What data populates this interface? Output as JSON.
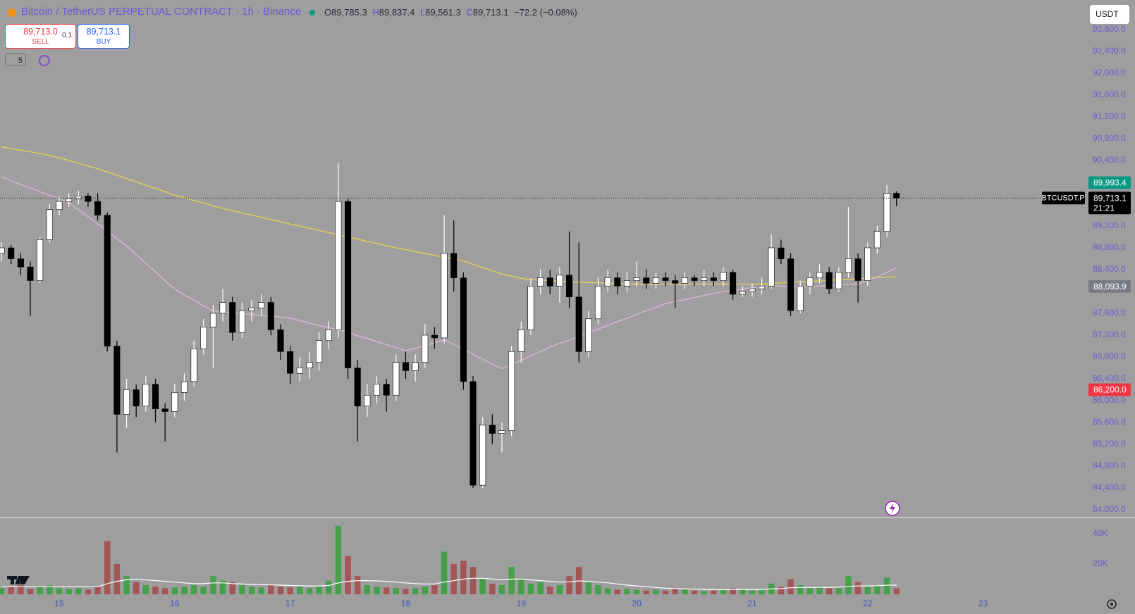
{
  "header": {
    "title": "Bitcoin / TetherUS PERPETUAL CONTRACT · 1h · Binance",
    "ohlc": [
      [
        "O",
        "89,785.3"
      ],
      [
        "H",
        "89,837.4"
      ],
      [
        "L",
        "89,561.3"
      ],
      [
        "C",
        "89,713.1"
      ]
    ],
    "change": "−72.2 (−0.08%)"
  },
  "trade": {
    "sell_price": "89,713.0",
    "sell": "SELL",
    "quantity": "0.1",
    "buy_price": "89,713.1",
    "buy": "BUY"
  },
  "indicators": "5",
  "currency": "USDT",
  "chart_data": {
    "type": "candlestick",
    "x": [
      -12,
      -10,
      -8,
      -6,
      -4,
      -2,
      0,
      2,
      4,
      6,
      8,
      10,
      12,
      14,
      16,
      18,
      20,
      22,
      24,
      26,
      28,
      30,
      32,
      34,
      36,
      38,
      40,
      42,
      44,
      46,
      48,
      50,
      52,
      54,
      56,
      58,
      60,
      62,
      64,
      66,
      68,
      70,
      72,
      74,
      76,
      78,
      80,
      82,
      84,
      86,
      88,
      90,
      92,
      94,
      96,
      98,
      100,
      102,
      104,
      106,
      108,
      110,
      112,
      114,
      116,
      118,
      120,
      122,
      124,
      126,
      128,
      130,
      132,
      134,
      136,
      138,
      140,
      142,
      144,
      146,
      148,
      150,
      152,
      154,
      156,
      158,
      160,
      162,
      164,
      166,
      168,
      170,
      172,
      174
    ],
    "candles": [
      [
        88700,
        88900,
        88550,
        88800
      ],
      [
        88800,
        88850,
        88500,
        88600
      ],
      [
        88600,
        88700,
        88300,
        88450
      ],
      [
        88450,
        88550,
        87550,
        88200
      ],
      [
        88200,
        89000,
        88150,
        88950
      ],
      [
        88950,
        89600,
        88900,
        89500
      ],
      [
        89500,
        89750,
        89400,
        89650
      ],
      [
        89650,
        89800,
        89550,
        89700
      ],
      [
        89700,
        89850,
        89600,
        89750
      ],
      [
        89750,
        89800,
        89550,
        89650
      ],
      [
        89650,
        89800,
        89300,
        89400
      ],
      [
        89400,
        89450,
        86900,
        87000
      ],
      [
        87000,
        87100,
        85050,
        85750
      ],
      [
        85750,
        86400,
        85500,
        86200
      ],
      [
        86200,
        86300,
        85700,
        85900
      ],
      [
        85900,
        86450,
        85800,
        86300
      ],
      [
        86300,
        86400,
        85600,
        85850
      ],
      [
        85850,
        85950,
        85250,
        85800
      ],
      [
        85800,
        86300,
        85700,
        86150
      ],
      [
        86150,
        86500,
        86000,
        86350
      ],
      [
        86350,
        87100,
        86250,
        86950
      ],
      [
        86950,
        87500,
        86850,
        87350
      ],
      [
        87350,
        87750,
        86600,
        87600
      ],
      [
        87600,
        88050,
        87450,
        87800
      ],
      [
        87800,
        87900,
        87100,
        87250
      ],
      [
        87250,
        87800,
        87150,
        87650
      ],
      [
        87650,
        87850,
        87450,
        87700
      ],
      [
        87700,
        87950,
        87550,
        87800
      ],
      [
        87800,
        87900,
        87200,
        87300
      ],
      [
        87300,
        87400,
        86750,
        86900
      ],
      [
        86900,
        87000,
        86300,
        86500
      ],
      [
        86500,
        86800,
        86350,
        86600
      ],
      [
        86600,
        86900,
        86400,
        86700
      ],
      [
        86700,
        87250,
        86550,
        87100
      ],
      [
        87100,
        87450,
        86950,
        87300
      ],
      [
        87300,
        90350,
        87150,
        89650
      ],
      [
        89650,
        89700,
        86400,
        86600
      ],
      [
        86600,
        86750,
        85250,
        85900
      ],
      [
        85900,
        86300,
        85700,
        86100
      ],
      [
        86100,
        86450,
        85950,
        86300
      ],
      [
        86300,
        86400,
        85800,
        86100
      ],
      [
        86100,
        86850,
        86000,
        86700
      ],
      [
        86700,
        86900,
        86400,
        86550
      ],
      [
        86550,
        86850,
        86350,
        86700
      ],
      [
        86700,
        87400,
        86600,
        87200
      ],
      [
        87200,
        87350,
        86950,
        87150
      ],
      [
        87150,
        89400,
        87050,
        88700
      ],
      [
        88700,
        89300,
        88000,
        88250
      ],
      [
        88250,
        88350,
        86200,
        86350
      ],
      [
        86350,
        86450,
        84400,
        84450
      ],
      [
        84450,
        85700,
        84400,
        85550
      ],
      [
        85550,
        85750,
        85200,
        85400
      ],
      [
        85400,
        85600,
        85050,
        85450
      ],
      [
        85450,
        87000,
        85350,
        86900
      ],
      [
        86900,
        87450,
        86700,
        87300
      ],
      [
        87300,
        88250,
        87200,
        88100
      ],
      [
        88100,
        88400,
        87950,
        88250
      ],
      [
        88250,
        88400,
        87950,
        88100
      ],
      [
        88100,
        88450,
        87800,
        88300
      ],
      [
        88300,
        89100,
        87700,
        87900
      ],
      [
        87900,
        88900,
        86700,
        86900
      ],
      [
        86900,
        87650,
        86800,
        87500
      ],
      [
        87500,
        88250,
        87400,
        88100
      ],
      [
        88100,
        88400,
        88000,
        88250
      ],
      [
        88250,
        88350,
        87950,
        88100
      ],
      [
        88100,
        88350,
        88000,
        88200
      ],
      [
        88200,
        88550,
        88100,
        88250
      ],
      [
        88250,
        88400,
        88050,
        88150
      ],
      [
        88150,
        88350,
        88050,
        88250
      ],
      [
        88250,
        88350,
        88100,
        88200
      ],
      [
        88200,
        88300,
        87700,
        88150
      ],
      [
        88150,
        88350,
        88050,
        88250
      ],
      [
        88250,
        88300,
        88100,
        88200
      ],
      [
        88200,
        88400,
        88100,
        88250
      ],
      [
        88250,
        88350,
        88100,
        88200
      ],
      [
        88200,
        88450,
        88100,
        88350
      ],
      [
        88350,
        88400,
        87850,
        87950
      ],
      [
        87950,
        88100,
        87900,
        88000
      ],
      [
        88000,
        88150,
        87900,
        88050
      ],
      [
        88050,
        88250,
        87950,
        88100
      ],
      [
        88100,
        89050,
        88050,
        88800
      ],
      [
        88800,
        88950,
        88500,
        88600
      ],
      [
        88600,
        88700,
        87550,
        87650
      ],
      [
        87650,
        88200,
        87600,
        88100
      ],
      [
        88100,
        88350,
        87950,
        88250
      ],
      [
        88250,
        88500,
        88150,
        88350
      ],
      [
        88350,
        88450,
        87950,
        88050
      ],
      [
        88050,
        88450,
        88000,
        88350
      ],
      [
        88350,
        89550,
        88250,
        88600
      ],
      [
        88600,
        88700,
        87800,
        88200
      ],
      [
        88200,
        88900,
        88100,
        88800
      ],
      [
        88800,
        89200,
        88700,
        89100
      ],
      [
        89100,
        89950,
        89000,
        89800
      ],
      [
        89800,
        89837.4,
        89561.3,
        89713.1
      ]
    ],
    "up_color": "#ffffff",
    "down_color": "#000000",
    "ma_lines": [
      {
        "color": "#e8d44d",
        "values": [
          90650,
          90620,
          90590,
          90560,
          90530,
          90490,
          90450,
          90400,
          90350,
          90300,
          90250,
          90190,
          90130,
          90070,
          90010,
          89950,
          89890,
          89830,
          89765,
          89720,
          89670,
          89620,
          89570,
          89520,
          89480,
          89440,
          89400,
          89360,
          89320,
          89280,
          89235,
          89200,
          89160,
          89120,
          89080,
          89040,
          89000,
          88960,
          88920,
          88880,
          88840,
          88800,
          88770,
          88730,
          88700,
          88660,
          88630,
          88600,
          88560,
          88500,
          88440,
          88380,
          88320,
          88280,
          88240,
          88220,
          88210,
          88200,
          88190,
          88180,
          88170,
          88165,
          88160,
          88150,
          88145,
          88140,
          88135,
          88135,
          88135,
          88135,
          88135,
          88135,
          88135,
          88135,
          88135,
          88135,
          88135,
          88135,
          88135,
          88140,
          88150,
          88160,
          88165,
          88175,
          88185,
          88195,
          88205,
          88215,
          88225,
          88235,
          88245,
          88255,
          88265,
          88270
        ]
      },
      {
        "color": "#dcb8dc",
        "values": [
          90100,
          90030,
          89960,
          89900,
          89830,
          89760,
          89700,
          89630,
          89500,
          89370,
          89240,
          89100,
          88970,
          88840,
          88680,
          88520,
          88360,
          88200,
          88040,
          87940,
          87840,
          87740,
          87645,
          87630,
          87610,
          87600,
          87580,
          87560,
          87550,
          87530,
          87510,
          87470,
          87420,
          87380,
          87340,
          87300,
          87250,
          87190,
          87140,
          87080,
          87030,
          86970,
          86915,
          86960,
          87010,
          87060,
          87115,
          87030,
          86940,
          86850,
          86760,
          86670,
          86585,
          86660,
          86740,
          86820,
          86900,
          86980,
          87050,
          87110,
          87180,
          87250,
          87310,
          87380,
          87450,
          87510,
          87580,
          87650,
          87710,
          87780,
          87820,
          87850,
          87890,
          87930,
          87960,
          88000,
          88020,
          88040,
          88070,
          88090,
          88110,
          88100,
          88095,
          88090,
          88090,
          88100,
          88110,
          88120,
          88130,
          88140,
          88200,
          88270,
          88350,
          88440
        ]
      }
    ],
    "ylim": [
      83884,
      93342
    ],
    "yticks": [
      {
        "value": 92800,
        "label": "92,800.0"
      },
      {
        "value": 92400,
        "label": "92,400.0"
      },
      {
        "value": 92000,
        "label": "92,000.0"
      },
      {
        "value": 91600,
        "label": "91,600.0"
      },
      {
        "value": 91200,
        "label": "91,200.0"
      },
      {
        "value": 90800,
        "label": "90,800.0"
      },
      {
        "value": 90400,
        "label": "90,400.0"
      },
      {
        "value": 89200,
        "label": "89,200.0"
      },
      {
        "value": 88800,
        "label": "88,800.0"
      },
      {
        "value": 88400,
        "label": "88,400.0"
      },
      {
        "value": 87600,
        "label": "87,600.0"
      },
      {
        "value": 87200,
        "label": "87,200.0"
      },
      {
        "value": 86800,
        "label": "86,800.0"
      },
      {
        "value": 86400,
        "label": "86,400.0"
      },
      {
        "value": 86000,
        "label": "86,000.0"
      },
      {
        "value": 85600,
        "label": "85,600.0"
      },
      {
        "value": 85200,
        "label": "85,200.0"
      },
      {
        "value": 84800,
        "label": "84,800.0"
      },
      {
        "value": 84400,
        "label": "84,400.0"
      },
      {
        "value": 84000,
        "label": "84,000.0"
      }
    ],
    "xlim": [
      -12.3,
      213.3
    ],
    "xticks": [
      {
        "value": 0,
        "label": "15"
      },
      {
        "value": 24,
        "label": "16"
      },
      {
        "value": 48,
        "label": "17"
      },
      {
        "value": 72,
        "label": "18"
      },
      {
        "value": 96,
        "label": "19"
      },
      {
        "value": 120,
        "label": "20"
      },
      {
        "value": 144,
        "label": "21"
      },
      {
        "value": 168,
        "label": "22"
      },
      {
        "value": 192,
        "label": "23"
      }
    ],
    "current_price": {
      "symbol": "BTCUSDT.P",
      "value": 89713.1,
      "label": "89,713.1",
      "countdown": "21:21"
    },
    "price_labels": [
      {
        "value": 89993.4,
        "label": "89,993.4",
        "color": "#089981"
      },
      {
        "value": 88093.9,
        "label": "88,093.9",
        "color": "#787b86"
      },
      {
        "value": 86200,
        "label": "86,200.0",
        "color": "#f23645"
      }
    ],
    "volume": {
      "values": [
        4000,
        5000,
        6000,
        3500,
        5000,
        6000,
        4000,
        3500,
        4000,
        3000,
        5000,
        35000,
        20000,
        12000,
        8000,
        6000,
        5000,
        4000,
        4500,
        5000,
        6000,
        5000,
        12000,
        9000,
        8000,
        6000,
        5000,
        4500,
        6000,
        5000,
        4500,
        5000,
        4000,
        5000,
        9000,
        45000,
        25000,
        12000,
        6000,
        5000,
        4500,
        4000,
        3500,
        4000,
        5000,
        6000,
        28000,
        20000,
        22000,
        18000,
        10000,
        7000,
        6000,
        18000,
        10000,
        7000,
        8000,
        5000,
        6000,
        12000,
        18000,
        8000,
        6000,
        4000,
        3000,
        3500,
        3000,
        2500,
        3000,
        2500,
        4000,
        3000,
        2500,
        2000,
        2500,
        3000,
        4000,
        3000,
        2500,
        3000,
        7000,
        5000,
        10000,
        6000,
        4000,
        5000,
        4000,
        4000,
        12000,
        8000,
        5000,
        6000,
        11000,
        4000
      ],
      "ma": [
        5000,
        5000,
        5000,
        5000,
        5000,
        5000,
        5000,
        5000,
        5000,
        5000,
        5000,
        7000,
        8500,
        9500,
        10000,
        9500,
        9000,
        8500,
        8000,
        7500,
        7000,
        7000,
        7500,
        7500,
        7000,
        6800,
        6500,
        6300,
        6200,
        6000,
        5800,
        5600,
        5500,
        5500,
        5800,
        7500,
        8500,
        9000,
        9000,
        8800,
        8500,
        8000,
        7500,
        7000,
        6800,
        6800,
        8000,
        9000,
        10000,
        10500,
        10500,
        10000,
        9500,
        10000,
        10000,
        9500,
        9000,
        8500,
        8000,
        8200,
        8800,
        8500,
        8000,
        7500,
        6800,
        6000,
        5500,
        5000,
        4500,
        4000,
        3800,
        3600,
        3400,
        3200,
        3100,
        3100,
        3200,
        3200,
        3100,
        3100,
        3500,
        3800,
        4300,
        4500,
        4500,
        4600,
        4600,
        4700,
        5200,
        5500,
        5500,
        5600,
        6000,
        6000
      ],
      "ma_color": "#ffffff",
      "up_color": "#45a049",
      "down_color": "#a45656",
      "ylim": [
        0,
        50000
      ],
      "yticks": [
        {
          "value": 40000,
          "label": "40K"
        },
        {
          "value": 20000,
          "label": "20K"
        }
      ]
    }
  }
}
